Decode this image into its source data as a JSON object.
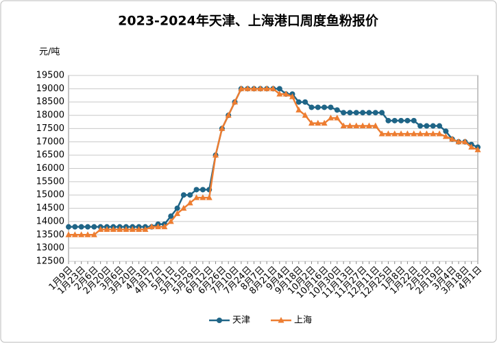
{
  "chart_data": {
    "type": "line",
    "title": "2023-2024年天津、上海港口周度鱼粉报价",
    "y_label": "元/吨",
    "categories": [
      "1月9日",
      null,
      "1月23日",
      null,
      "2月6日",
      null,
      "2月20日",
      null,
      "3月6日",
      null,
      "3月20日",
      null,
      "4月3日",
      null,
      "4月17日",
      null,
      "5月1日",
      null,
      "5月15日",
      null,
      "5月29日",
      null,
      "6月12日",
      null,
      "6月26日",
      null,
      "7月10日",
      null,
      "7月24日",
      null,
      "8月7日",
      null,
      "8月21日",
      null,
      "9月4日",
      null,
      "9月18日",
      null,
      "10月2日",
      null,
      "10月16日",
      null,
      "10月30日",
      null,
      "11月13日",
      null,
      "11月27日",
      null,
      "12月11日",
      null,
      "12月25日",
      null,
      "1月8日",
      null,
      "1月22日",
      null,
      "2月5日",
      null,
      "2月19日",
      null,
      "3月4日",
      null,
      "3月18日",
      null,
      "4月1日"
    ],
    "series": [
      {
        "name": "天津",
        "color": "#1f6587",
        "marker": "circle",
        "values": [
          13800,
          13800,
          13800,
          13800,
          13800,
          13800,
          13800,
          13800,
          13800,
          13800,
          13800,
          13800,
          13800,
          13800,
          13900,
          13900,
          14200,
          14500,
          15000,
          15000,
          15200,
          15200,
          15200,
          16500,
          17500,
          18000,
          18500,
          19000,
          19000,
          19000,
          19000,
          19000,
          19000,
          19000,
          18800,
          18800,
          18500,
          18500,
          18300,
          18300,
          18300,
          18300,
          18200,
          18100,
          18100,
          18100,
          18100,
          18100,
          18100,
          18100,
          17800,
          17800,
          17800,
          17800,
          17800,
          17600,
          17600,
          17600,
          17600,
          17400,
          17100,
          17000,
          17000,
          16900,
          16800
        ]
      },
      {
        "name": "上海",
        "color": "#ed7d31",
        "marker": "triangle",
        "values": [
          13500,
          13500,
          13500,
          13500,
          13500,
          13700,
          13700,
          13700,
          13700,
          13700,
          13700,
          13700,
          13700,
          13800,
          13800,
          13800,
          14000,
          14300,
          14500,
          14700,
          14900,
          14900,
          14900,
          16500,
          17500,
          18000,
          18500,
          19000,
          19000,
          19000,
          19000,
          19000,
          19000,
          18800,
          18800,
          18700,
          18200,
          18000,
          17700,
          17700,
          17700,
          17900,
          17900,
          17600,
          17600,
          17600,
          17600,
          17600,
          17600,
          17300,
          17300,
          17300,
          17300,
          17300,
          17300,
          17300,
          17300,
          17300,
          17300,
          17200,
          17100,
          17000,
          17000,
          16800,
          16700
        ]
      }
    ],
    "ylim": [
      12500,
      19500
    ],
    "yticks": [
      12500,
      13000,
      13500,
      14000,
      14500,
      15000,
      15500,
      16000,
      16500,
      17000,
      17500,
      18000,
      18500,
      19000,
      19500
    ],
    "grid": true,
    "legend": "bottom"
  }
}
